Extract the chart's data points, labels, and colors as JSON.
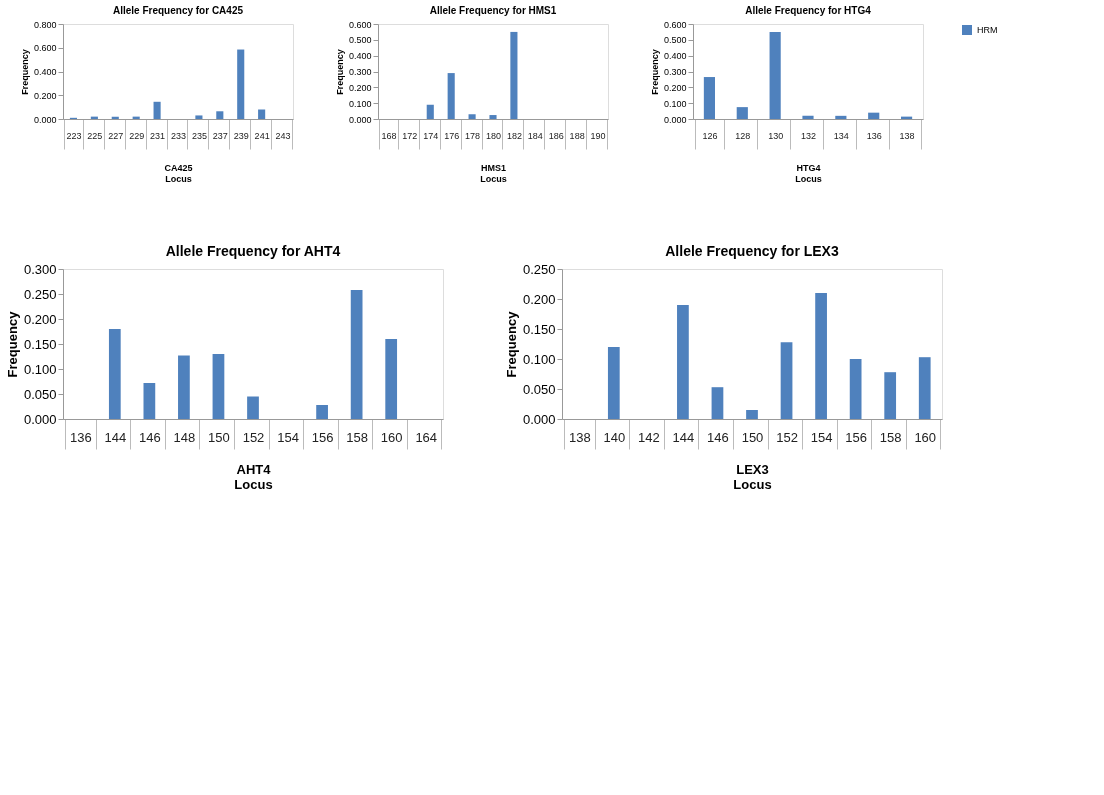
{
  "chart_data": [
    {
      "type": "bar",
      "title": "Allele Frequency for CA425",
      "xlabel": "Locus",
      "ylabel": "Frequency",
      "annotations": [
        "CA425"
      ],
      "legend": "right",
      "grid": false,
      "categories": [
        "223",
        "225",
        "227",
        "229",
        "231",
        "233",
        "235",
        "237",
        "239",
        "241",
        "243"
      ],
      "series": [
        {
          "name": "HRM",
          "color": "#4f81bd",
          "values": [
            0.01,
            0.02,
            0.02,
            0.02,
            0.145,
            0,
            0.03,
            0.065,
            0.585,
            0.08,
            0
          ]
        }
      ],
      "ylim": [
        0,
        0.8
      ],
      "yticks": [
        {
          "value": 0,
          "label": "0.000"
        },
        {
          "value": 0.2,
          "label": "0.200"
        },
        {
          "value": 0.4,
          "label": "0.400"
        },
        {
          "value": 0.6,
          "label": "0.600"
        },
        {
          "value": 0.8,
          "label": "0.800"
        }
      ]
    },
    {
      "type": "bar",
      "title": "Allele Frequency for HMS1",
      "xlabel": "Locus",
      "ylabel": "Frequency",
      "annotations": [
        "HMS1"
      ],
      "legend": "right",
      "grid": false,
      "categories": [
        "168",
        "172",
        "174",
        "176",
        "178",
        "180",
        "182",
        "184",
        "186",
        "188",
        "190"
      ],
      "series": [
        {
          "name": "HRM",
          "color": "#4f81bd",
          "values": [
            0,
            0,
            0.09,
            0.29,
            0.03,
            0.025,
            0.55,
            0,
            0,
            0,
            0
          ]
        }
      ],
      "ylim": [
        0,
        0.6
      ],
      "yticks": [
        {
          "value": 0,
          "label": "0.000"
        },
        {
          "value": 0.1,
          "label": "0.100"
        },
        {
          "value": 0.2,
          "label": "0.200"
        },
        {
          "value": 0.3,
          "label": "0.300"
        },
        {
          "value": 0.4,
          "label": "0.400"
        },
        {
          "value": 0.5,
          "label": "0.500"
        },
        {
          "value": 0.6,
          "label": "0.600"
        }
      ]
    },
    {
      "type": "bar",
      "title": "Allele Frequency for HTG4",
      "xlabel": "Locus",
      "ylabel": "Frequency",
      "annotations": [
        "HTG4"
      ],
      "legend": "right",
      "grid": false,
      "categories": [
        "126",
        "128",
        "130",
        "132",
        "134",
        "136",
        "138"
      ],
      "series": [
        {
          "name": "HRM",
          "color": "#4f81bd",
          "values": [
            0.265,
            0.075,
            0.55,
            0.02,
            0.02,
            0.04,
            0.015
          ]
        }
      ],
      "ylim": [
        0,
        0.6
      ],
      "yticks": [
        {
          "value": 0,
          "label": "0.000"
        },
        {
          "value": 0.1,
          "label": "0.100"
        },
        {
          "value": 0.2,
          "label": "0.200"
        },
        {
          "value": 0.3,
          "label": "0.300"
        },
        {
          "value": 0.4,
          "label": "0.400"
        },
        {
          "value": 0.5,
          "label": "0.500"
        },
        {
          "value": 0.6,
          "label": "0.600"
        }
      ]
    },
    {
      "type": "bar",
      "title": "Allele Frequency for AHT4",
      "xlabel": "Locus",
      "ylabel": "Frequency",
      "annotations": [
        "AHT4"
      ],
      "legend": "right",
      "grid": false,
      "categories": [
        "136",
        "144",
        "146",
        "148",
        "150",
        "152",
        "154",
        "156",
        "158",
        "160",
        "164"
      ],
      "series": [
        {
          "name": "HRM",
          "color": "#4f81bd",
          "values": [
            0,
            0.18,
            0.072,
            0.127,
            0.13,
            0.045,
            0,
            0.028,
            0.258,
            0.16,
            0
          ]
        }
      ],
      "ylim": [
        0,
        0.3
      ],
      "yticks": [
        {
          "value": 0,
          "label": "0.000"
        },
        {
          "value": 0.05,
          "label": "0.050"
        },
        {
          "value": 0.1,
          "label": "0.100"
        },
        {
          "value": 0.15,
          "label": "0.150"
        },
        {
          "value": 0.2,
          "label": "0.200"
        },
        {
          "value": 0.25,
          "label": "0.250"
        },
        {
          "value": 0.3,
          "label": "0.300"
        }
      ]
    },
    {
      "type": "bar",
      "title": "Allele Frequency for LEX3",
      "xlabel": "Locus",
      "ylabel": "Frequency",
      "annotations": [
        "LEX3"
      ],
      "legend": "right",
      "grid": false,
      "categories": [
        "138",
        "140",
        "142",
        "144",
        "146",
        "150",
        "152",
        "154",
        "156",
        "158",
        "160"
      ],
      "series": [
        {
          "name": "HRM",
          "color": "#4f81bd",
          "values": [
            0,
            0.12,
            0,
            0.19,
            0.053,
            0.015,
            0.128,
            0.21,
            0.1,
            0.078,
            0.103
          ]
        }
      ],
      "ylim": [
        0,
        0.25
      ],
      "yticks": [
        {
          "value": 0,
          "label": "0.000"
        },
        {
          "value": 0.05,
          "label": "0.050"
        },
        {
          "value": 0.1,
          "label": "0.100"
        },
        {
          "value": 0.15,
          "label": "0.150"
        },
        {
          "value": 0.2,
          "label": "0.200"
        },
        {
          "value": 0.25,
          "label": "0.250"
        }
      ]
    }
  ]
}
